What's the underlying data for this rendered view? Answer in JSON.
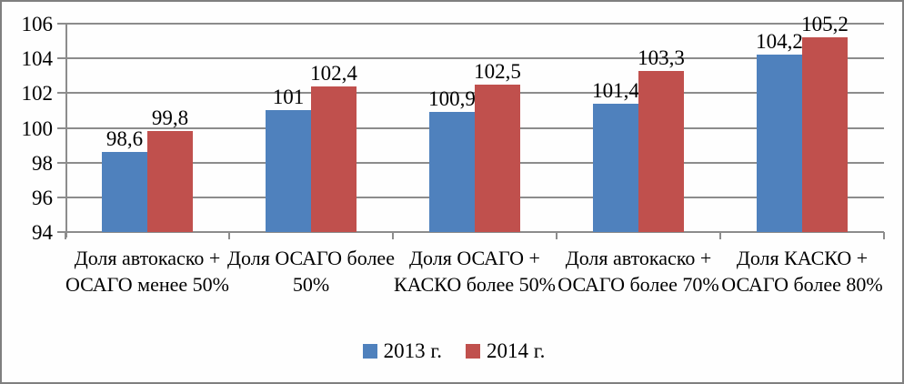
{
  "frame": {
    "background": "#fefefe",
    "border_color": "#7f7f7f"
  },
  "chart_data": {
    "type": "bar",
    "title": "",
    "xlabel": "",
    "ylabel": "",
    "categories": [
      "Доля автокаско + ОСАГО менее 50%",
      "Доля ОСАГО более 50%",
      "Доля ОСАГО + КАСКО более 50%",
      "Доля автокаско + ОСАГО более 70%",
      "Доля КАСКО + ОСАГО более 80%"
    ],
    "series": [
      {
        "name": "2013 г.",
        "color": "#4F81BD",
        "values": [
          98.6,
          101,
          100.9,
          101.4,
          104.2
        ],
        "labels": [
          "98,6",
          "101",
          "100,9",
          "101,4",
          "104,2"
        ]
      },
      {
        "name": "2014 г.",
        "color": "#C0504D",
        "values": [
          99.8,
          102.4,
          102.5,
          103.3,
          105.2
        ],
        "labels": [
          "99,8",
          "102,4",
          "102,5",
          "103,3",
          "105,2"
        ]
      }
    ],
    "y_ticks": [
      94,
      96,
      98,
      100,
      102,
      104,
      106
    ],
    "ylim": [
      94,
      106
    ],
    "grid": true,
    "legend_position": "bottom",
    "gridline_color": "#8c8c8c",
    "axis_color": "#8c8c8c",
    "text_color": "#000000"
  }
}
